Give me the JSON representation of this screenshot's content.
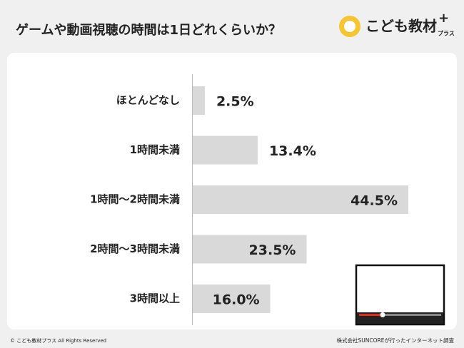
{
  "chart_data": {
    "type": "hbar",
    "title": "ゲームや動画視聴の時間は1日どれくらいか？",
    "categories": [
      "ほとんどなし",
      "1時間未満",
      "1時間〜2時間未満",
      "2時間〜3時間未満",
      "3時間以上"
    ],
    "values": [
      2.5,
      13.4,
      44.5,
      23.5,
      16.0
    ],
    "value_labels": [
      "2.5%",
      "13.4%",
      "44.5%",
      "23.5%",
      "16.0%"
    ],
    "color": "#d9d9d9"
  },
  "logo": {
    "name": "こども教材",
    "suffix": "プラス"
  },
  "footer": {
    "copyright": "© こども教材プラス All Rights Reserved",
    "source": "株式会社SUNCOREが行ったインターネット調査"
  }
}
